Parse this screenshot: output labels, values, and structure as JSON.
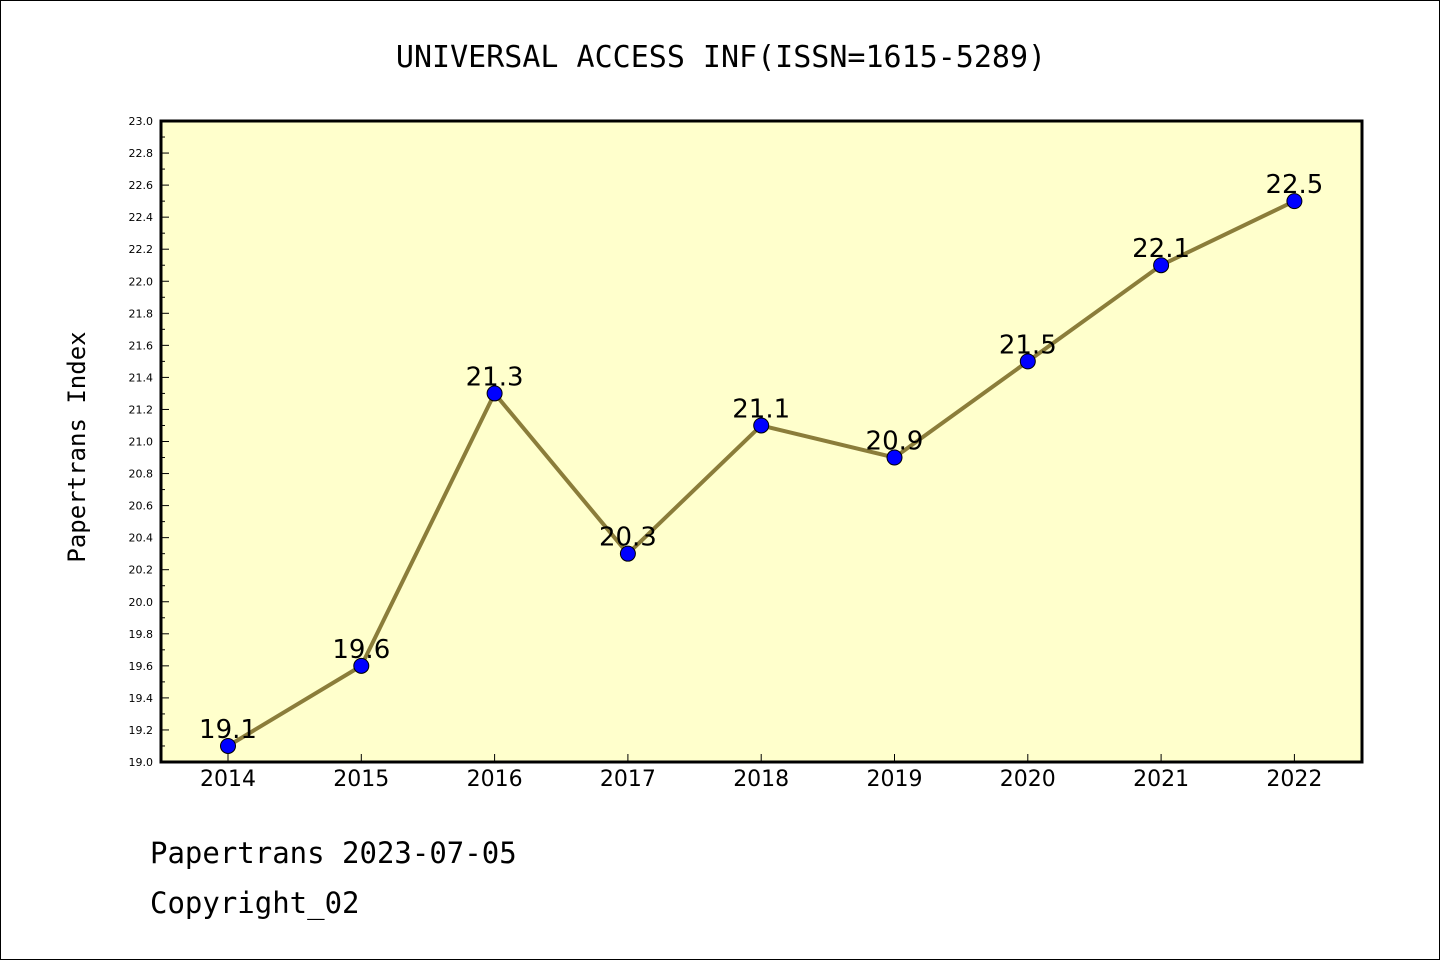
{
  "chart_data": {
    "type": "line",
    "title": "UNIVERSAL ACCESS INF(ISSN=1615-5289)",
    "xlabel": "",
    "ylabel": "Papertrans Index",
    "categories": [
      "2014",
      "2015",
      "2016",
      "2017",
      "2018",
      "2019",
      "2020",
      "2021",
      "2022"
    ],
    "values": [
      19.1,
      19.6,
      21.3,
      20.3,
      21.1,
      20.9,
      21.5,
      22.1,
      22.5
    ],
    "data_labels": [
      "19.1",
      "19.6",
      "21.3",
      "20.3",
      "21.1",
      "20.9",
      "21.5",
      "22.1",
      "22.5"
    ],
    "ylim": [
      19.0,
      23.0
    ],
    "yticks": [
      "19.0",
      "19.2",
      "19.4",
      "19.6",
      "19.8",
      "20.0",
      "20.2",
      "20.4",
      "20.6",
      "20.8",
      "21.0",
      "21.2",
      "21.4",
      "21.6",
      "21.8",
      "22.0",
      "22.2",
      "22.4",
      "22.6",
      "22.8",
      "23.0"
    ],
    "grid": false,
    "legend": "none",
    "colors": {
      "plot_background": "#ffffcc",
      "line": "#8b7d3a",
      "marker": "#0000ff"
    }
  },
  "footer": {
    "date_line": "Papertrans 2023-07-05",
    "copyright": "Copyright_02"
  }
}
